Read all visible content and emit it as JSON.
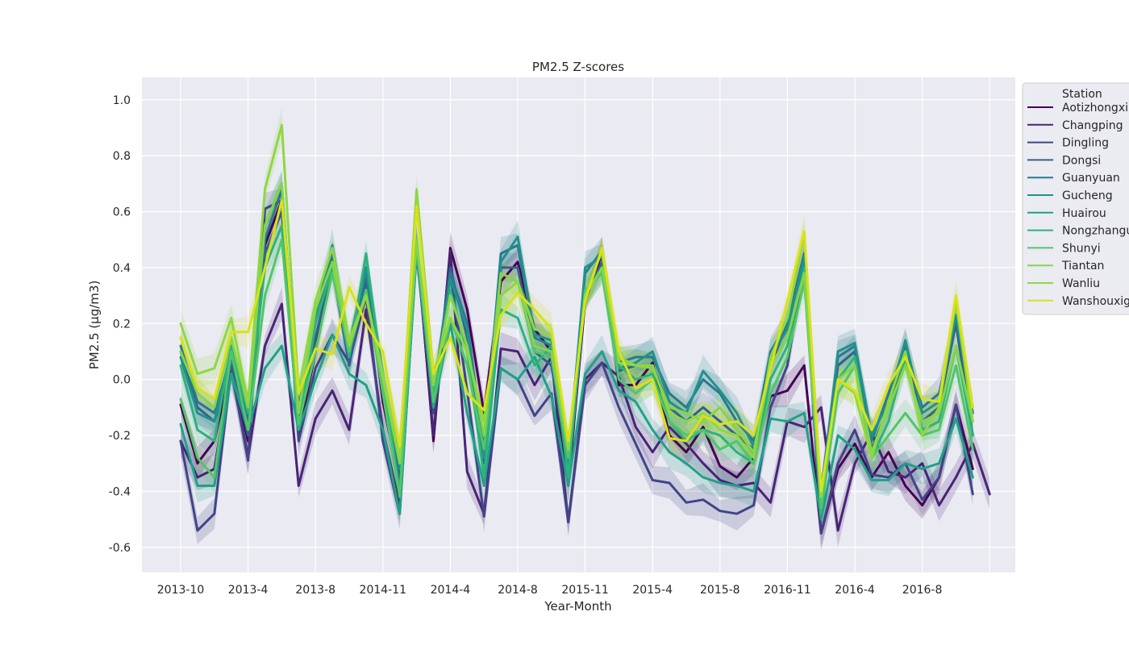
{
  "chart_data": {
    "type": "line",
    "title": "PM2.5 Z-scores",
    "xlabel": "Year-Month",
    "ylabel": "PM2.5 (μg/m3)",
    "ylim": [
      -0.69,
      1.08
    ],
    "y_ticks": [
      "-0.6",
      "-0.4",
      "-0.2",
      "0.0",
      "0.2",
      "0.4",
      "0.6",
      "0.8",
      "1.0"
    ],
    "x_tick_labels": [
      "2013-10",
      "2013-4",
      "2013-8",
      "2014-11",
      "2014-4",
      "2014-8",
      "2015-11",
      "2015-4",
      "2015-8",
      "2016-11",
      "2016-4",
      "2016-8"
    ],
    "grid": true,
    "legend_position": "outside upper right",
    "legend_title": "Station",
    "background": "#eaeaf2",
    "series": [
      {
        "name": "Aotizhongxin",
        "color": "#440154",
        "values": [
          -0.09,
          -0.3,
          -0.22,
          0.05,
          -0.22,
          0.48,
          0.64,
          -0.2,
          0.1,
          0.45,
          0.08,
          0.4,
          -0.08,
          -0.38,
          0.5,
          -0.22,
          0.47,
          0.25,
          -0.12,
          0.35,
          0.42,
          0.18,
          0.1,
          -0.38,
          0.28,
          0.45,
          -0.02,
          -0.02,
          0.06,
          -0.2,
          -0.26,
          -0.17,
          -0.31,
          -0.35,
          -0.28,
          -0.06,
          -0.04,
          0.05,
          -0.55,
          -0.32,
          -0.23,
          -0.35,
          -0.26,
          -0.38,
          -0.45,
          -0.35,
          -0.09,
          -0.32
        ]
      },
      {
        "name": "Changping",
        "color": "#482475",
        "values": [
          -0.22,
          -0.35,
          -0.32,
          0.05,
          -0.28,
          0.12,
          0.27,
          -0.38,
          -0.14,
          -0.04,
          -0.18,
          0.25,
          -0.18,
          -0.45,
          0.48,
          -0.2,
          0.46,
          -0.33,
          -0.48,
          0.11,
          0.1,
          -0.02,
          0.08,
          -0.51,
          0.0,
          0.06,
          0.01,
          -0.17,
          -0.26,
          -0.17,
          -0.23,
          -0.3,
          -0.36,
          -0.38,
          -0.37,
          -0.44,
          -0.15,
          -0.17,
          -0.1,
          -0.54,
          -0.3,
          -0.19,
          -0.33,
          -0.35,
          -0.3,
          -0.45,
          -0.35,
          -0.23,
          -0.41
        ]
      },
      {
        "name": "Dingling",
        "color": "#414487",
        "values": [
          -0.22,
          -0.54,
          -0.48,
          0.04,
          -0.29,
          0.61,
          0.64,
          -0.22,
          0.04,
          0.16,
          0.06,
          0.3,
          -0.22,
          -0.48,
          0.46,
          -0.12,
          0.38,
          -0.04,
          -0.49,
          0.04,
          0.0,
          -0.13,
          -0.05,
          -0.51,
          -0.02,
          0.06,
          -0.1,
          -0.23,
          -0.36,
          -0.37,
          -0.44,
          -0.43,
          -0.47,
          -0.48,
          -0.45,
          -0.1,
          0.05,
          0.42,
          -0.55,
          -0.3,
          -0.18,
          -0.34,
          -0.35,
          -0.3,
          -0.43,
          -0.35,
          -0.09,
          -0.41
        ]
      },
      {
        "name": "Dongsi",
        "color": "#355f8d",
        "values": [
          0.1,
          -0.1,
          -0.15,
          0.05,
          -0.2,
          0.45,
          0.6,
          -0.15,
          0.15,
          0.4,
          0.05,
          0.35,
          -0.05,
          -0.35,
          0.45,
          -0.1,
          0.4,
          0.15,
          -0.3,
          0.4,
          0.4,
          0.1,
          0.05,
          -0.3,
          0.3,
          0.42,
          0.03,
          0.05,
          0.05,
          -0.1,
          -0.15,
          -0.1,
          -0.15,
          -0.2,
          -0.25,
          0.05,
          0.2,
          0.45,
          -0.45,
          0.05,
          0.1,
          -0.25,
          -0.1,
          0.1,
          -0.15,
          -0.1,
          0.2,
          -0.2
        ]
      },
      {
        "name": "Guanyuan",
        "color": "#2a788e",
        "values": [
          0.12,
          -0.08,
          -0.12,
          0.08,
          -0.15,
          0.5,
          0.68,
          -0.1,
          0.2,
          0.45,
          0.1,
          0.38,
          0.0,
          -0.3,
          0.48,
          -0.05,
          0.38,
          0.2,
          -0.25,
          0.45,
          0.48,
          0.15,
          0.12,
          -0.28,
          0.38,
          0.46,
          0.06,
          0.08,
          0.08,
          -0.05,
          -0.1,
          0.0,
          -0.05,
          -0.15,
          -0.22,
          0.1,
          0.2,
          0.42,
          -0.4,
          0.08,
          0.12,
          -0.22,
          -0.05,
          0.12,
          -0.1,
          -0.05,
          0.22,
          -0.12
        ]
      },
      {
        "name": "Gucheng",
        "color": "#21918c",
        "values": [
          0.08,
          -0.12,
          -0.15,
          0.1,
          -0.1,
          0.55,
          0.7,
          -0.12,
          0.22,
          0.48,
          0.12,
          0.4,
          0.02,
          -0.32,
          0.5,
          -0.08,
          0.36,
          0.18,
          -0.28,
          0.42,
          0.51,
          0.16,
          0.14,
          -0.3,
          0.4,
          0.44,
          0.04,
          0.06,
          0.1,
          -0.08,
          -0.12,
          0.03,
          -0.04,
          -0.12,
          -0.24,
          0.08,
          0.18,
          0.44,
          -0.42,
          0.1,
          0.13,
          -0.2,
          -0.08,
          0.14,
          -0.12,
          -0.08,
          0.23,
          -0.1
        ]
      },
      {
        "name": "Huairou",
        "color": "#1fa187",
        "values": [
          -0.16,
          -0.38,
          -0.38,
          0.02,
          -0.18,
          0.04,
          0.12,
          -0.18,
          0.0,
          0.16,
          0.02,
          -0.02,
          -0.18,
          -0.48,
          0.46,
          -0.1,
          0.2,
          -0.12,
          -0.38,
          0.04,
          0.0,
          0.08,
          -0.06,
          -0.38,
          0.02,
          0.1,
          -0.04,
          -0.08,
          -0.18,
          -0.26,
          -0.3,
          -0.35,
          -0.37,
          -0.38,
          -0.4,
          -0.14,
          -0.15,
          -0.12,
          -0.5,
          -0.2,
          -0.25,
          -0.36,
          -0.36,
          -0.3,
          -0.32,
          -0.3,
          -0.14,
          -0.35
        ]
      },
      {
        "name": "Nongzhanguan",
        "color": "#2db27d",
        "values": [
          0.05,
          -0.18,
          -0.22,
          0.12,
          -0.12,
          0.4,
          0.55,
          -0.18,
          0.2,
          0.4,
          0.08,
          0.45,
          0.0,
          -0.4,
          0.5,
          -0.05,
          0.32,
          0.1,
          -0.35,
          0.25,
          0.22,
          0.05,
          0.12,
          -0.35,
          0.3,
          0.4,
          0.05,
          0.0,
          0.02,
          -0.15,
          -0.22,
          -0.18,
          -0.2,
          -0.26,
          -0.3,
          0.0,
          0.12,
          0.4,
          -0.48,
          0.0,
          0.08,
          -0.28,
          -0.15,
          0.08,
          -0.18,
          -0.15,
          0.12,
          -0.2
        ]
      },
      {
        "name": "Shunyi",
        "color": "#52c569",
        "values": [
          -0.07,
          -0.28,
          -0.35,
          0.1,
          -0.18,
          0.3,
          0.5,
          -0.16,
          0.1,
          0.38,
          0.1,
          0.32,
          -0.05,
          -0.42,
          0.48,
          -0.08,
          0.22,
          0.05,
          -0.25,
          0.3,
          0.35,
          0.1,
          0.08,
          -0.28,
          0.32,
          0.38,
          0.0,
          -0.05,
          0.0,
          -0.15,
          -0.2,
          -0.18,
          -0.25,
          -0.22,
          -0.3,
          -0.05,
          0.08,
          0.35,
          -0.46,
          -0.05,
          0.05,
          -0.28,
          -0.2,
          -0.12,
          -0.2,
          -0.18,
          0.05,
          -0.25
        ]
      },
      {
        "name": "Tiantan",
        "color": "#86d549",
        "values": [
          0.1,
          -0.05,
          -0.1,
          0.15,
          -0.1,
          0.55,
          0.7,
          -0.12,
          0.25,
          0.42,
          0.12,
          0.3,
          0.0,
          -0.3,
          0.5,
          -0.02,
          0.3,
          0.12,
          -0.2,
          0.38,
          0.35,
          0.12,
          0.1,
          -0.25,
          0.3,
          0.4,
          0.08,
          0.05,
          0.04,
          -0.1,
          -0.12,
          -0.15,
          -0.1,
          -0.18,
          -0.26,
          0.05,
          0.15,
          0.38,
          -0.42,
          0.0,
          0.05,
          -0.26,
          -0.1,
          0.05,
          -0.15,
          -0.12,
          0.12,
          -0.15
        ]
      },
      {
        "name": "Wanliu",
        "color": "#8fd744",
        "values": [
          0.2,
          0.02,
          0.04,
          0.22,
          -0.08,
          0.68,
          0.91,
          -0.04,
          0.28,
          0.47,
          0.14,
          0.3,
          0.02,
          -0.28,
          0.68,
          0.02,
          0.22,
          0.1,
          -0.15,
          0.3,
          0.35,
          0.18,
          0.16,
          -0.25,
          0.3,
          0.46,
          0.06,
          0.05,
          0.05,
          -0.12,
          -0.15,
          -0.12,
          -0.18,
          -0.2,
          -0.28,
          0.08,
          0.22,
          0.52,
          -0.42,
          0.0,
          -0.05,
          -0.28,
          -0.08,
          0.1,
          -0.2,
          -0.1,
          0.28,
          -0.15
        ]
      },
      {
        "name": "Wanshouxigong",
        "color": "#d8e219",
        "values": [
          0.15,
          -0.03,
          -0.07,
          0.17,
          0.17,
          0.4,
          0.64,
          -0.05,
          0.11,
          0.09,
          0.33,
          0.2,
          0.1,
          -0.24,
          0.62,
          0.02,
          0.15,
          -0.05,
          -0.11,
          0.23,
          0.31,
          0.25,
          0.18,
          -0.22,
          0.28,
          0.47,
          0.1,
          -0.03,
          0.0,
          -0.21,
          -0.22,
          -0.13,
          -0.16,
          -0.15,
          -0.2,
          0.04,
          0.28,
          0.53,
          -0.4,
          0.0,
          -0.04,
          -0.18,
          -0.02,
          0.08,
          -0.07,
          -0.08,
          0.3,
          -0.1
        ]
      }
    ]
  }
}
